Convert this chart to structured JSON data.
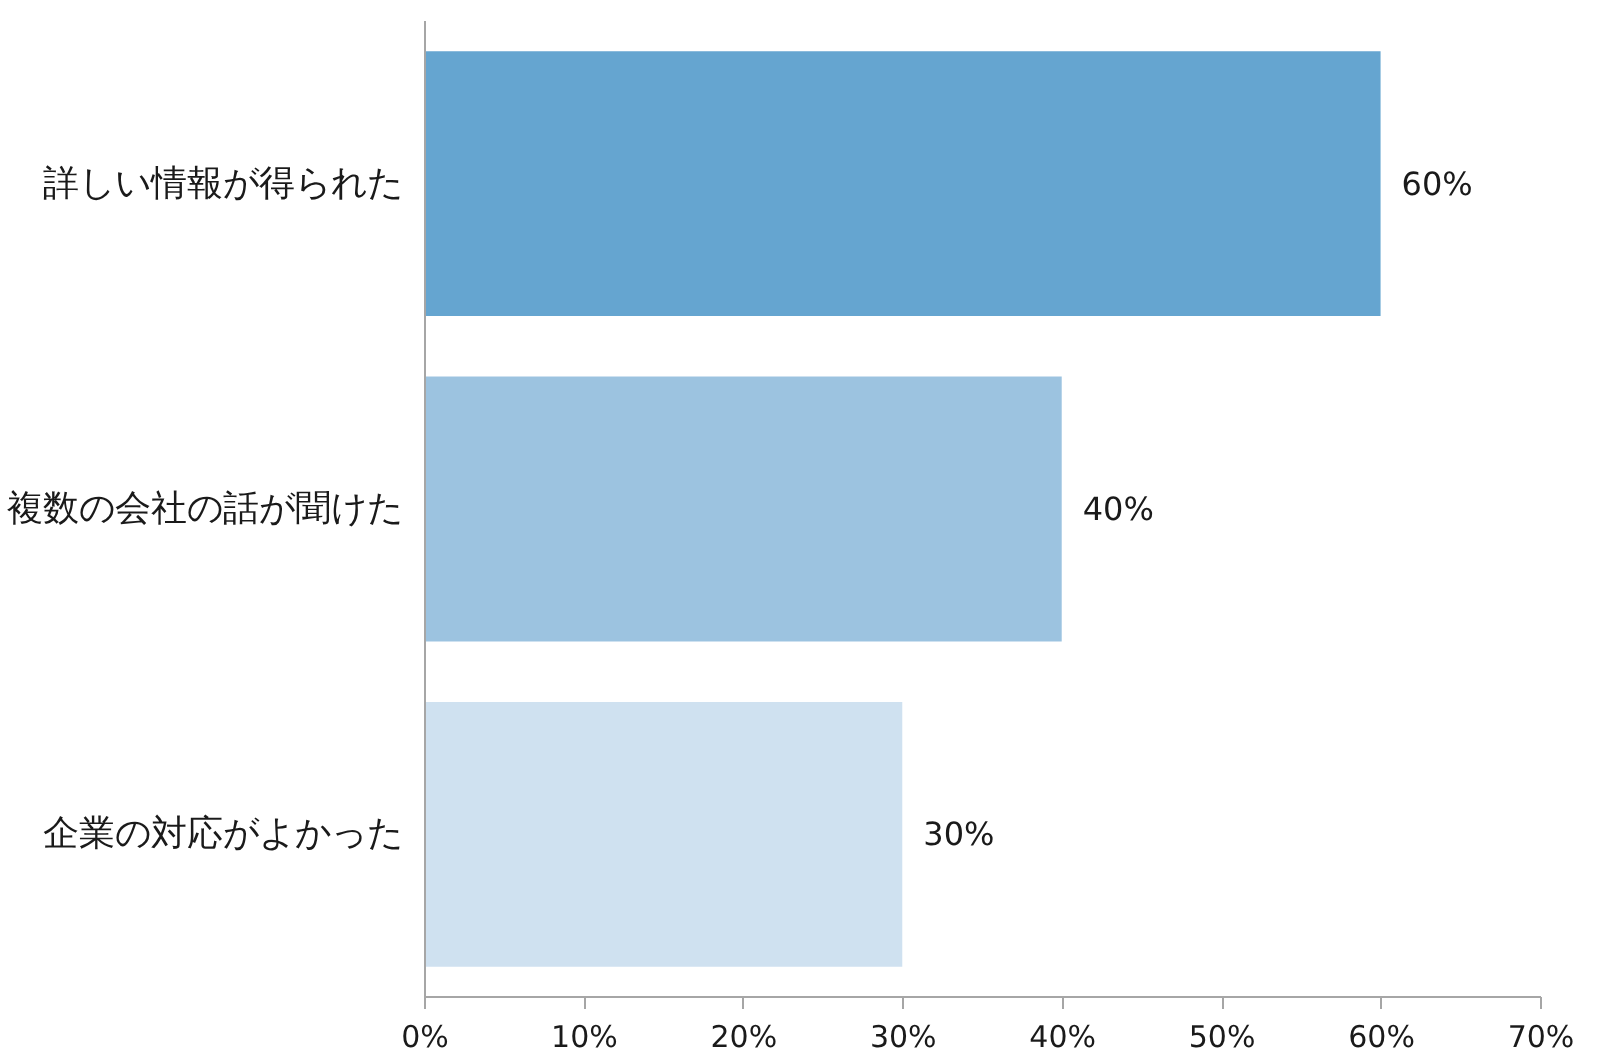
{
  "chart_data": {
    "type": "bar",
    "orientation": "horizontal",
    "categories": [
      "詳しい情報が得られた",
      "複数の会社の話が聞けた",
      "企業の対応がよかった"
    ],
    "values": [
      60,
      40,
      30
    ],
    "colors": [
      "#65a5d0",
      "#9cc3e0",
      "#cfe1f0"
    ],
    "value_labels": [
      "60%",
      "40%",
      "30%"
    ],
    "xlim": [
      0,
      70
    ],
    "xticks": [
      {
        "value": 0,
        "label": "0%"
      },
      {
        "value": 10,
        "label": "10%"
      },
      {
        "value": 20,
        "label": "20%"
      },
      {
        "value": 30,
        "label": "30%"
      },
      {
        "value": 40,
        "label": "40%"
      },
      {
        "value": 50,
        "label": "50%"
      },
      {
        "value": 60,
        "label": "60%"
      },
      {
        "value": 70,
        "label": "70%"
      }
    ],
    "grid": false
  }
}
